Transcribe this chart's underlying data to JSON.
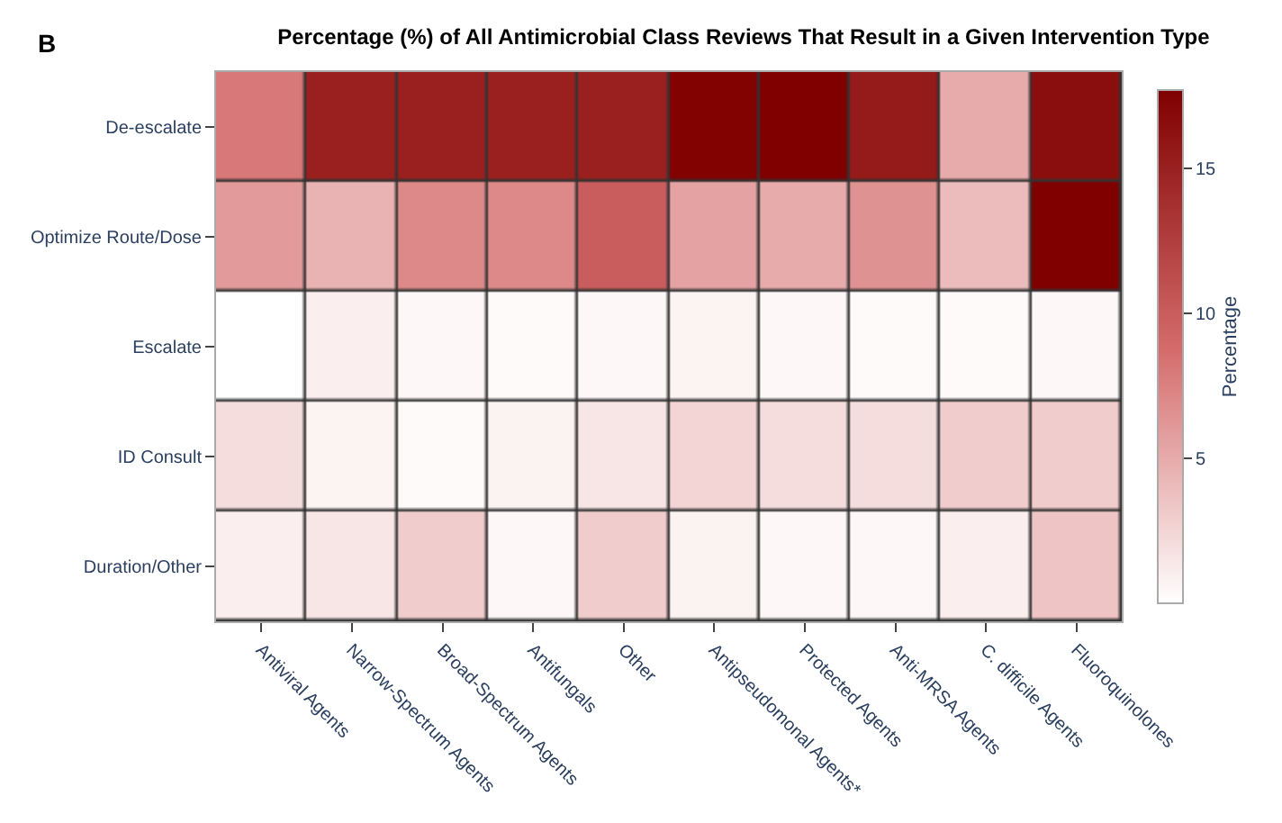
{
  "chart_data": {
    "type": "heatmap",
    "title": "Percentage (%) of All Antimicrobial Class Reviews That Result in a Given Intervention Type",
    "clabel": "Percentage",
    "annotations": [
      "B"
    ],
    "categories": [
      "Antiviral Agents",
      "Narrow-Spectrum Agents",
      "Broad-Spectrum Agents",
      "Antifungals",
      "Other",
      "Antipseudomonal Agents*",
      "Protected Agents",
      "Anti-MRSA Agents",
      "C. difficile Agents",
      "Fluoroquinolones"
    ],
    "y_categories": [
      "De-escalate",
      "Optimize Route/Dose",
      "Escalate",
      "ID Consult",
      "Duration/Other"
    ],
    "cells": [
      [
        8,
        15,
        15,
        15,
        15,
        17.5,
        17.7,
        15.5,
        5,
        16.5
      ],
      [
        6,
        4.5,
        7,
        7,
        10,
        5.5,
        5,
        6.5,
        4,
        17.7
      ],
      [
        0,
        1,
        0.5,
        0.3,
        0.5,
        0.7,
        0.5,
        0.3,
        0.3,
        0.5
      ],
      [
        2,
        0.7,
        0.3,
        0.8,
        1.5,
        2.5,
        2,
        2,
        3,
        3
      ],
      [
        1,
        1.5,
        3,
        0.5,
        3,
        0.8,
        0.5,
        0.5,
        1,
        3.5
      ]
    ],
    "clim": [
      0,
      17.7
    ],
    "cticks": [
      5,
      10,
      15
    ]
  }
}
